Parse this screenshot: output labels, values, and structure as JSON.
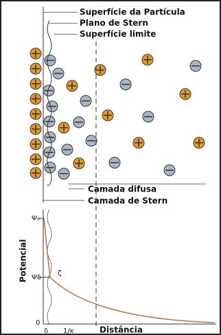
{
  "labels": {
    "particle_surface": "Superfície da Partícula",
    "stern_plane": "Plano de Stern",
    "boundary_surface": "Superfície limite",
    "diffuse_layer": "Camada difusa",
    "stern_layer": "Camada de Stern"
  },
  "plot": {
    "y_label": "Potencial",
    "x_label": "Distância",
    "psi0": "Ψ₀",
    "psi_delta": "Ψδ",
    "zeta": "ζ",
    "origin": "0",
    "delta": "δ",
    "debye": "1/κ"
  }
}
